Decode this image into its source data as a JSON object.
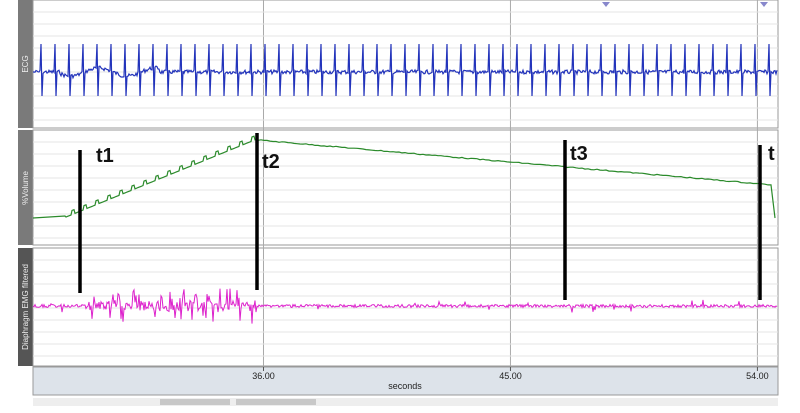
{
  "channels": [
    {
      "label": "ECG"
    },
    {
      "label": "%Volume"
    },
    {
      "label": "Diaphragm EMG filtered"
    }
  ],
  "annotations": [
    "t1",
    "t2",
    "t3",
    "t"
  ],
  "time_axis": {
    "label": "seconds",
    "xlim": [
      27.6,
      54.75
    ],
    "xticks": [
      {
        "value": 36,
        "label": "36.00"
      },
      {
        "value": 45,
        "label": "45.00"
      },
      {
        "value": 54,
        "label": "54.00"
      }
    ]
  }
}
